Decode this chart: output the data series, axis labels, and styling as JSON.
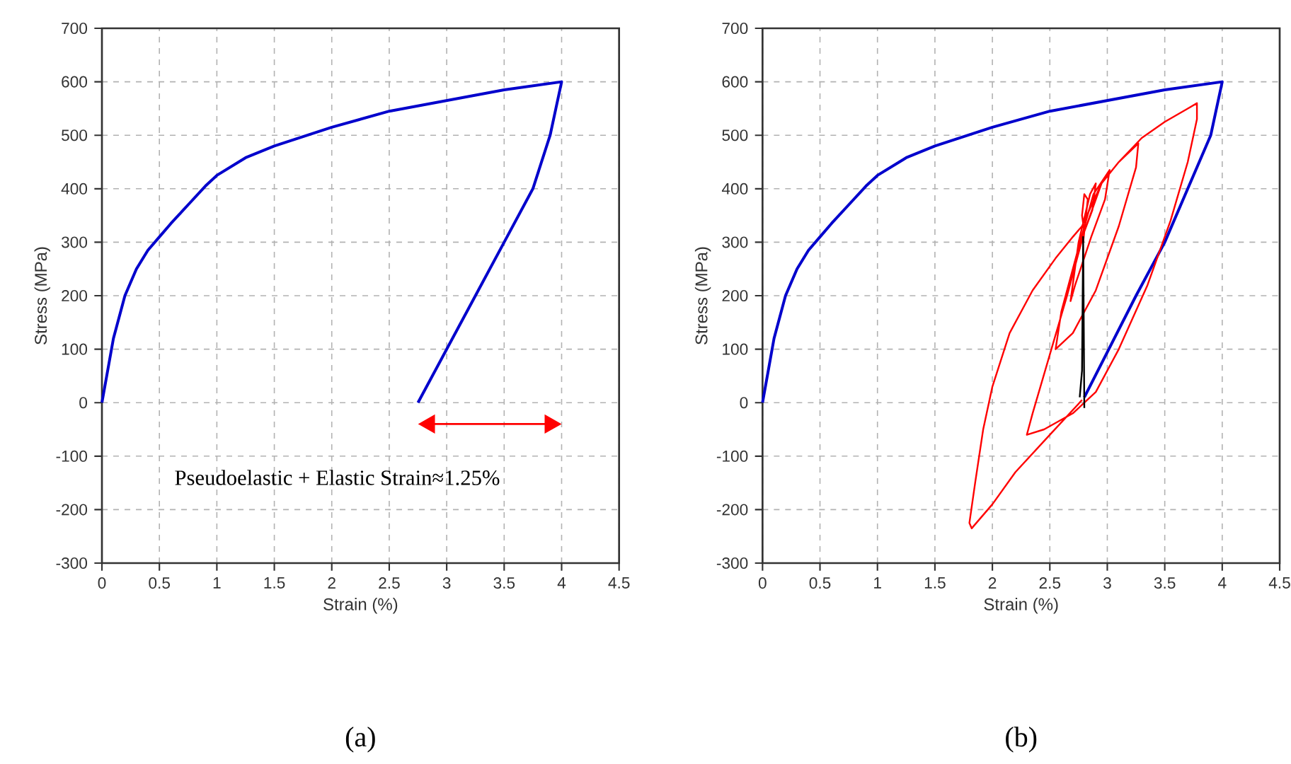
{
  "chart_data": [
    {
      "type": "line",
      "title": "(a)",
      "xlabel": "Strain (%)",
      "ylabel": "Stress (MPa)",
      "xlim": [
        0,
        4.5
      ],
      "ylim": [
        -300,
        700
      ],
      "xticks": [
        0,
        0.5,
        1,
        1.5,
        2,
        2.5,
        3,
        3.5,
        4,
        4.5
      ],
      "yticks": [
        -300,
        -200,
        -100,
        0,
        100,
        200,
        300,
        400,
        500,
        600,
        700
      ],
      "grid": true,
      "marker": "none",
      "line_style": "solid",
      "annotations": [
        "Pseudoelastic + Elastic Strain≈1.25%"
      ],
      "series": [
        {
          "color": "#0000cc",
          "x": [
            0,
            0.05,
            0.1,
            0.2,
            0.3,
            0.4,
            0.5,
            0.6,
            0.75,
            0.9,
            1,
            1.25,
            1.5,
            2,
            2.5,
            3,
            3.5,
            4,
            3.95,
            3.9,
            3.75,
            3.5,
            3.25,
            2.75
          ],
          "values": [
            0,
            60,
            120,
            200,
            250,
            285,
            310,
            335,
            370,
            405,
            425,
            458,
            480,
            515,
            545,
            565,
            585,
            600,
            550,
            500,
            400,
            300,
            200,
            0
          ]
        }
      ]
    },
    {
      "type": "line",
      "title": "(b)",
      "xlabel": "Strain (%)",
      "ylabel": "Stress (MPa)",
      "xlim": [
        0,
        4.5
      ],
      "ylim": [
        -300,
        700
      ],
      "xticks": [
        0,
        0.5,
        1,
        1.5,
        2,
        2.5,
        3,
        3.5,
        4,
        4.5
      ],
      "yticks": [
        -300,
        -200,
        -100,
        0,
        100,
        200,
        300,
        400,
        500,
        600,
        700
      ],
      "grid": true,
      "marker": "none",
      "line_style": "solid",
      "series": [
        {
          "color": "#0000cc",
          "x": [
            0,
            0.05,
            0.1,
            0.2,
            0.3,
            0.4,
            0.5,
            0.6,
            0.75,
            0.9,
            1,
            1.25,
            1.5,
            2,
            2.5,
            3,
            3.5,
            4,
            3.95,
            3.9,
            3.7,
            3.5,
            3.25,
            2.8
          ],
          "values": [
            0,
            60,
            120,
            200,
            250,
            285,
            310,
            335,
            370,
            405,
            425,
            458,
            480,
            515,
            545,
            565,
            585,
            600,
            550,
            500,
            400,
            300,
            200,
            10
          ]
        },
        {
          "color": "#ff0000",
          "x": [
            2.78,
            2.5,
            2.2,
            2.0,
            1.82,
            1.8,
            1.85,
            1.92,
            2.0,
            2.15,
            2.35,
            2.55,
            2.7,
            2.78,
            2.95,
            3.1,
            3.3,
            3.5,
            3.7,
            3.78,
            3.78,
            3.7,
            3.55,
            3.35,
            3.1,
            2.9,
            2.7,
            2.45,
            2.3,
            2.35,
            2.5,
            2.65,
            2.8,
            2.95,
            3.1,
            3.27,
            3.25,
            3.1,
            2.9,
            2.7,
            2.55,
            2.6,
            2.75,
            2.88,
            3.02,
            2.98,
            2.86,
            2.72,
            2.68,
            2.75,
            2.85,
            2.9,
            2.87,
            2.8,
            2.78,
            2.8,
            2.83,
            2.79
          ],
          "values": [
            5,
            -60,
            -130,
            -190,
            -235,
            -225,
            -150,
            -50,
            30,
            130,
            210,
            270,
            310,
            330,
            410,
            450,
            495,
            525,
            550,
            560,
            530,
            450,
            340,
            220,
            100,
            20,
            -20,
            -50,
            -60,
            -20,
            90,
            200,
            320,
            410,
            450,
            485,
            440,
            330,
            210,
            130,
            100,
            170,
            290,
            390,
            435,
            380,
            310,
            220,
            190,
            300,
            390,
            410,
            360,
            320,
            350,
            390,
            380,
            300
          ]
        },
        {
          "color": "#000000",
          "x": [
            2.76,
            2.78,
            2.79,
            2.8
          ],
          "values": [
            10,
            60,
            310,
            -10
          ]
        }
      ]
    }
  ]
}
